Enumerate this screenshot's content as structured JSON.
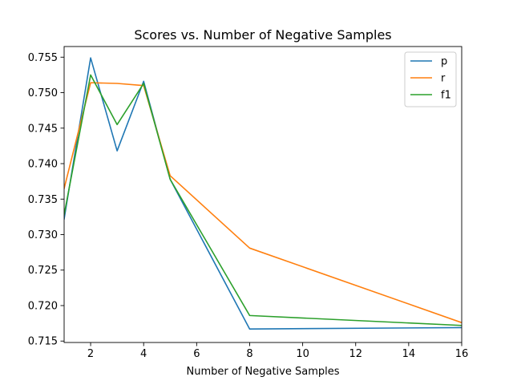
{
  "chart_data": {
    "type": "line",
    "title": "Scores vs. Number of Negative Samples",
    "xlabel": "Number of Negative Samples",
    "ylabel": "",
    "x": [
      1,
      2,
      3,
      4,
      5,
      8,
      16
    ],
    "xlim": [
      1,
      16
    ],
    "ylim": [
      0.7148,
      0.7565
    ],
    "xticks": [
      2,
      4,
      6,
      8,
      10,
      12,
      14,
      16
    ],
    "xtick_labels": [
      "2",
      "4",
      "6",
      "8",
      "10",
      "12",
      "14",
      "16"
    ],
    "yticks": [
      0.715,
      0.72,
      0.725,
      0.73,
      0.735,
      0.74,
      0.745,
      0.75,
      0.755
    ],
    "ytick_labels": [
      "0.715",
      "0.720",
      "0.725",
      "0.730",
      "0.735",
      "0.740",
      "0.745",
      "0.750",
      "0.755"
    ],
    "grid": false,
    "legend_position": "top-right",
    "series": [
      {
        "name": "p",
        "color": "#1f77b4",
        "values": [
          0.7322,
          0.7549,
          0.7418,
          0.7516,
          0.7378,
          0.7167,
          0.7169
        ]
      },
      {
        "name": "r",
        "color": "#ff7f0e",
        "values": [
          0.7365,
          0.7514,
          0.7513,
          0.751,
          0.7383,
          0.7281,
          0.7176
        ]
      },
      {
        "name": "f1",
        "color": "#2ca02c",
        "values": [
          0.7328,
          0.7525,
          0.7455,
          0.7513,
          0.7378,
          0.7186,
          0.7172
        ]
      }
    ]
  }
}
